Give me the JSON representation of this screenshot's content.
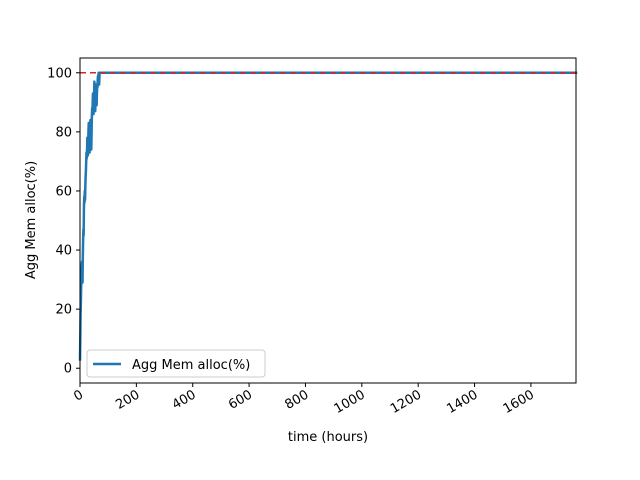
{
  "chart_data": {
    "type": "line",
    "title": "",
    "xlabel": "time (hours)",
    "ylabel": "Agg Mem alloc(%)",
    "xlim": [
      0,
      1760
    ],
    "ylim": [
      -5,
      105
    ],
    "x_ticks": [
      0,
      200,
      400,
      600,
      800,
      1000,
      1200,
      1400,
      1600
    ],
    "x_tick_labels": [
      "0",
      "200",
      "400",
      "600",
      "800",
      "1000",
      "1200",
      "1400",
      "1600"
    ],
    "y_ticks": [
      0,
      20,
      40,
      60,
      80,
      100
    ],
    "y_tick_labels": [
      "0",
      "20",
      "40",
      "60",
      "80",
      "100"
    ],
    "grid": false,
    "legend": {
      "position": "lower-left",
      "entries": [
        "Agg Mem alloc(%)"
      ]
    },
    "reference_line": {
      "y": 100,
      "color": "#d62728",
      "style": "dashed"
    },
    "colors": {
      "series": "#1f77b4",
      "reference": "#d62728"
    },
    "series": [
      {
        "name": "Agg Mem alloc(%)",
        "x": [
          0,
          1,
          2,
          3,
          4,
          5,
          6,
          7,
          8,
          9,
          10,
          11,
          12,
          13,
          14,
          15,
          16,
          17,
          18,
          19,
          20,
          21,
          22,
          23,
          24,
          25,
          26,
          27,
          28,
          29,
          30,
          31,
          32,
          33,
          34,
          35,
          36,
          37,
          38,
          39,
          40,
          41,
          42,
          43,
          44,
          45,
          46,
          47,
          48,
          49,
          50,
          51,
          52,
          53,
          54,
          55,
          56,
          57,
          58,
          59,
          60,
          61,
          62,
          63,
          64,
          65,
          66,
          67,
          68,
          69,
          70,
          72,
          75,
          80,
          200,
          600,
          1000,
          1400,
          1760
        ],
        "y": [
          3,
          10,
          18,
          22,
          27,
          30,
          34,
          36,
          31,
          29,
          38,
          43,
          47,
          45,
          55,
          58,
          56,
          60,
          57,
          62,
          65,
          67,
          70,
          73,
          71,
          74,
          78,
          75,
          72,
          76,
          80,
          83,
          79,
          76,
          73,
          78,
          82,
          84,
          81,
          78,
          74,
          79,
          85,
          88,
          86,
          90,
          93,
          89,
          86,
          90,
          92,
          97,
          94,
          91,
          87,
          90,
          94,
          96,
          92,
          89,
          93,
          96,
          95,
          98,
          99,
          97,
          100,
          98,
          96,
          99,
          100,
          100,
          100,
          100,
          100,
          100,
          100,
          100,
          100
        ]
      }
    ]
  }
}
